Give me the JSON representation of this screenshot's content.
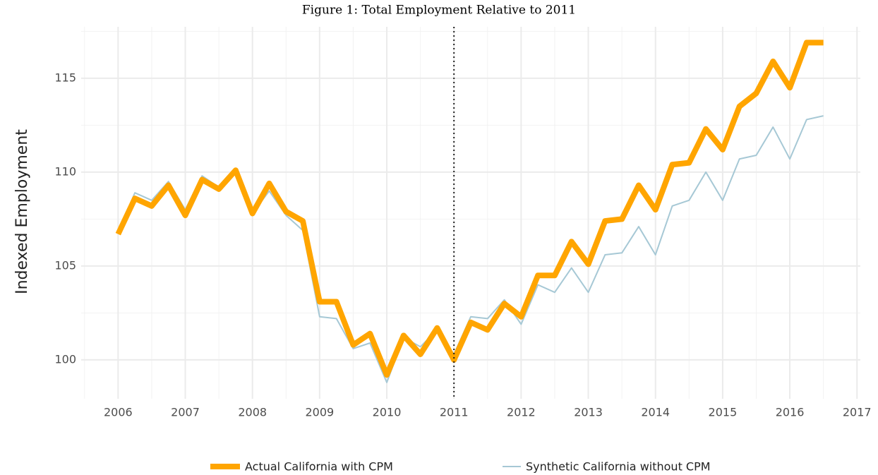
{
  "chart_data": {
    "type": "line",
    "title": "Figure 1: Total Employment Relative to 2011",
    "y_label": "Indexed Employment",
    "x": [
      2006,
      2006.25,
      2006.5,
      2006.75,
      2007,
      2007.25,
      2007.5,
      2007.75,
      2008,
      2008.25,
      2008.5,
      2008.75,
      2009,
      2009.25,
      2009.5,
      2009.75,
      2010,
      2010.25,
      2010.5,
      2010.75,
      2011,
      2011.25,
      2011.5,
      2011.75,
      2012,
      2012.25,
      2012.5,
      2012.75,
      2013,
      2013.25,
      2013.5,
      2013.75,
      2014,
      2014.25,
      2014.5,
      2014.75,
      2015,
      2015.25,
      2015.5,
      2015.75,
      2016,
      2016.25,
      2016.5
    ],
    "series": [
      {
        "name": "Actual California with CPM",
        "color": "#ffa500",
        "values": [
          106.7,
          108.6,
          108.2,
          109.3,
          107.7,
          109.6,
          109.1,
          110.1,
          107.8,
          109.4,
          107.9,
          107.4,
          103.1,
          103.1,
          100.8,
          101.4,
          99.2,
          101.3,
          100.3,
          101.7,
          100.0,
          102.0,
          101.6,
          103.0,
          102.3,
          104.5,
          104.5,
          106.3,
          105.1,
          107.4,
          107.5,
          109.3,
          108.0,
          110.4,
          110.5,
          112.3,
          111.2,
          113.5,
          114.2,
          115.9,
          114.5,
          116.9,
          116.9
        ]
      },
      {
        "name": "Synthetic California without CPM",
        "color": "#a6c8d5",
        "values": [
          106.8,
          108.9,
          108.5,
          109.5,
          108.0,
          109.8,
          109.2,
          110.0,
          107.8,
          109.0,
          107.7,
          106.9,
          102.3,
          102.2,
          100.6,
          100.9,
          98.8,
          101.2,
          100.7,
          101.6,
          100.3,
          102.3,
          102.2,
          103.2,
          101.9,
          104.0,
          103.6,
          104.9,
          103.6,
          105.6,
          105.7,
          107.1,
          105.6,
          108.2,
          108.5,
          110.0,
          108.5,
          110.7,
          110.9,
          112.4,
          110.7,
          112.8,
          113.0
        ]
      }
    ],
    "xlim": [
      2005.45,
      2017.05
    ],
    "ylim": [
      97.93,
      117.74
    ],
    "xticks": [
      2006,
      2007,
      2008,
      2009,
      2010,
      2011,
      2012,
      2013,
      2014,
      2015,
      2016,
      2017
    ],
    "yticks": [
      100,
      105,
      110,
      115
    ],
    "vline": 2011,
    "grid": true,
    "legend": "bottom"
  }
}
